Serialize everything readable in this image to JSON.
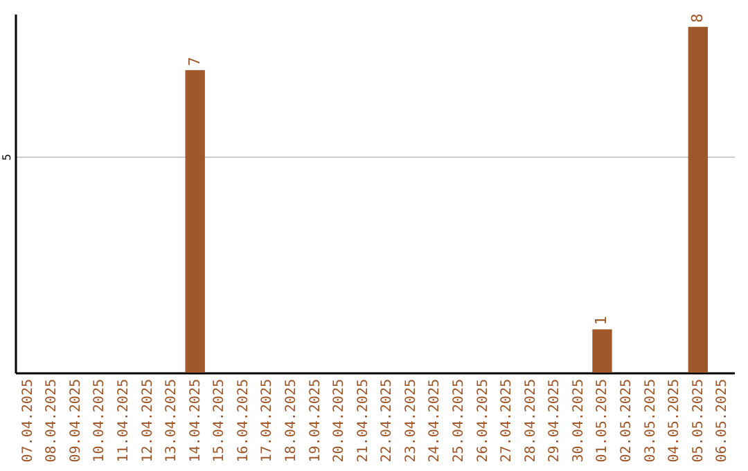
{
  "chart_data": {
    "type": "bar",
    "categories": [
      "07.04.2025",
      "08.04.2025",
      "09.04.2025",
      "10.04.2025",
      "11.04.2025",
      "12.04.2025",
      "13.04.2025",
      "14.04.2025",
      "15.04.2025",
      "16.04.2025",
      "17.04.2025",
      "18.04.2025",
      "19.04.2025",
      "20.04.2025",
      "21.04.2025",
      "22.04.2025",
      "23.04.2025",
      "24.04.2025",
      "25.04.2025",
      "26.04.2025",
      "27.04.2025",
      "28.04.2025",
      "29.04.2025",
      "30.04.2025",
      "01.05.2025",
      "02.05.2025",
      "03.05.2025",
      "04.05.2025",
      "05.05.2025",
      "06.05.2025"
    ],
    "values": [
      0,
      0,
      0,
      0,
      0,
      0,
      0,
      7,
      0,
      0,
      0,
      0,
      0,
      0,
      0,
      0,
      0,
      0,
      0,
      0,
      0,
      0,
      0,
      0,
      1,
      0,
      0,
      0,
      8,
      0
    ],
    "value_labels": [
      null,
      null,
      null,
      null,
      null,
      null,
      null,
      "7",
      null,
      null,
      null,
      null,
      null,
      null,
      null,
      null,
      null,
      null,
      null,
      null,
      null,
      null,
      null,
      null,
      "1",
      null,
      null,
      null,
      "8",
      null
    ],
    "color": "#a0572a",
    "ylim": [
      0,
      8.3
    ],
    "yticks": [
      5
    ],
    "grid": "y"
  }
}
